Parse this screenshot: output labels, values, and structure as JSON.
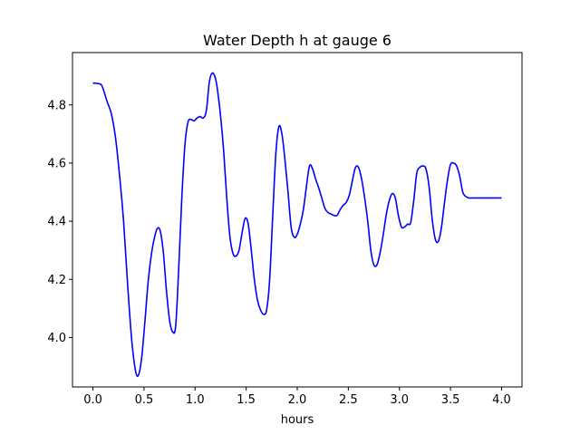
{
  "chart_data": {
    "type": "line",
    "title": "Water Depth h at gauge 6",
    "xlabel": "hours",
    "ylabel": "",
    "xlim": [
      -0.2,
      4.2
    ],
    "ylim": [
      3.83,
      4.98
    ],
    "xticks": [
      0.0,
      0.5,
      1.0,
      1.5,
      2.0,
      2.5,
      3.0,
      3.5,
      4.0
    ],
    "xtick_labels": [
      "0.0",
      "0.5",
      "1.0",
      "1.5",
      "2.0",
      "2.5",
      "3.0",
      "3.5",
      "4.0"
    ],
    "yticks": [
      4.0,
      4.2,
      4.4,
      4.6,
      4.8
    ],
    "ytick_labels": [
      "4.0",
      "4.2",
      "4.4",
      "4.6",
      "4.8"
    ],
    "grid": false,
    "line_color": "#0000ff",
    "series": [
      {
        "x": [
          0.0,
          0.04,
          0.08,
          0.1,
          0.14,
          0.18,
          0.22,
          0.26,
          0.3,
          0.34,
          0.38,
          0.42,
          0.45,
          0.48,
          0.51,
          0.54,
          0.57,
          0.6,
          0.63,
          0.66,
          0.69,
          0.72,
          0.75,
          0.78,
          0.81,
          0.84,
          0.87,
          0.9,
          0.93,
          0.96,
          0.99,
          1.02,
          1.05,
          1.08,
          1.11,
          1.14,
          1.17,
          1.2,
          1.22,
          1.25,
          1.28,
          1.31,
          1.34,
          1.37,
          1.4,
          1.43,
          1.46,
          1.49,
          1.52,
          1.55,
          1.58,
          1.61,
          1.64,
          1.67,
          1.7,
          1.73,
          1.76,
          1.79,
          1.82,
          1.85,
          1.88,
          1.91,
          1.94,
          1.97,
          2.0,
          2.03,
          2.06,
          2.09,
          2.12,
          2.15,
          2.18,
          2.21,
          2.24,
          2.27,
          2.3,
          2.33,
          2.36,
          2.39,
          2.42,
          2.45,
          2.48,
          2.51,
          2.54,
          2.57,
          2.6,
          2.63,
          2.66,
          2.69,
          2.72,
          2.75,
          2.78,
          2.81,
          2.84,
          2.87,
          2.9,
          2.93,
          2.96,
          2.99,
          3.02,
          3.05,
          3.08,
          3.11,
          3.14,
          3.17,
          3.2,
          3.23,
          3.26,
          3.29,
          3.32,
          3.35,
          3.38,
          3.41,
          3.44,
          3.47,
          3.5,
          3.53,
          3.56,
          3.59,
          3.62,
          3.65,
          3.68,
          3.71,
          3.74,
          3.77,
          3.8,
          3.83,
          3.86,
          3.89,
          3.92,
          3.95,
          3.98,
          4.0
        ],
        "y": [
          4.875,
          4.874,
          4.87,
          4.855,
          4.81,
          4.77,
          4.69,
          4.56,
          4.4,
          4.18,
          3.99,
          3.88,
          3.875,
          3.94,
          4.06,
          4.19,
          4.28,
          4.34,
          4.375,
          4.365,
          4.29,
          4.16,
          4.06,
          4.02,
          4.04,
          4.24,
          4.48,
          4.66,
          4.74,
          4.75,
          4.745,
          4.755,
          4.76,
          4.755,
          4.78,
          4.88,
          4.91,
          4.89,
          4.85,
          4.76,
          4.64,
          4.48,
          4.35,
          4.29,
          4.28,
          4.3,
          4.36,
          4.41,
          4.39,
          4.3,
          4.2,
          4.13,
          4.095,
          4.08,
          4.095,
          4.2,
          4.42,
          4.63,
          4.725,
          4.7,
          4.61,
          4.5,
          4.38,
          4.345,
          4.355,
          4.39,
          4.44,
          4.52,
          4.59,
          4.58,
          4.545,
          4.515,
          4.48,
          4.445,
          4.43,
          4.425,
          4.42,
          4.42,
          4.44,
          4.455,
          4.465,
          4.49,
          4.54,
          4.585,
          4.585,
          4.545,
          4.48,
          4.4,
          4.3,
          4.25,
          4.25,
          4.29,
          4.35,
          4.42,
          4.47,
          4.495,
          4.48,
          4.42,
          4.38,
          4.38,
          4.39,
          4.395,
          4.47,
          4.565,
          4.585,
          4.59,
          4.58,
          4.52,
          4.41,
          4.34,
          4.33,
          4.375,
          4.46,
          4.54,
          4.595,
          4.6,
          4.59,
          4.555,
          4.5,
          4.485,
          4.48,
          4.48,
          4.48,
          4.48,
          4.48,
          4.48,
          4.48,
          4.48,
          4.48,
          4.48,
          4.48,
          4.48
        ]
      }
    ]
  }
}
